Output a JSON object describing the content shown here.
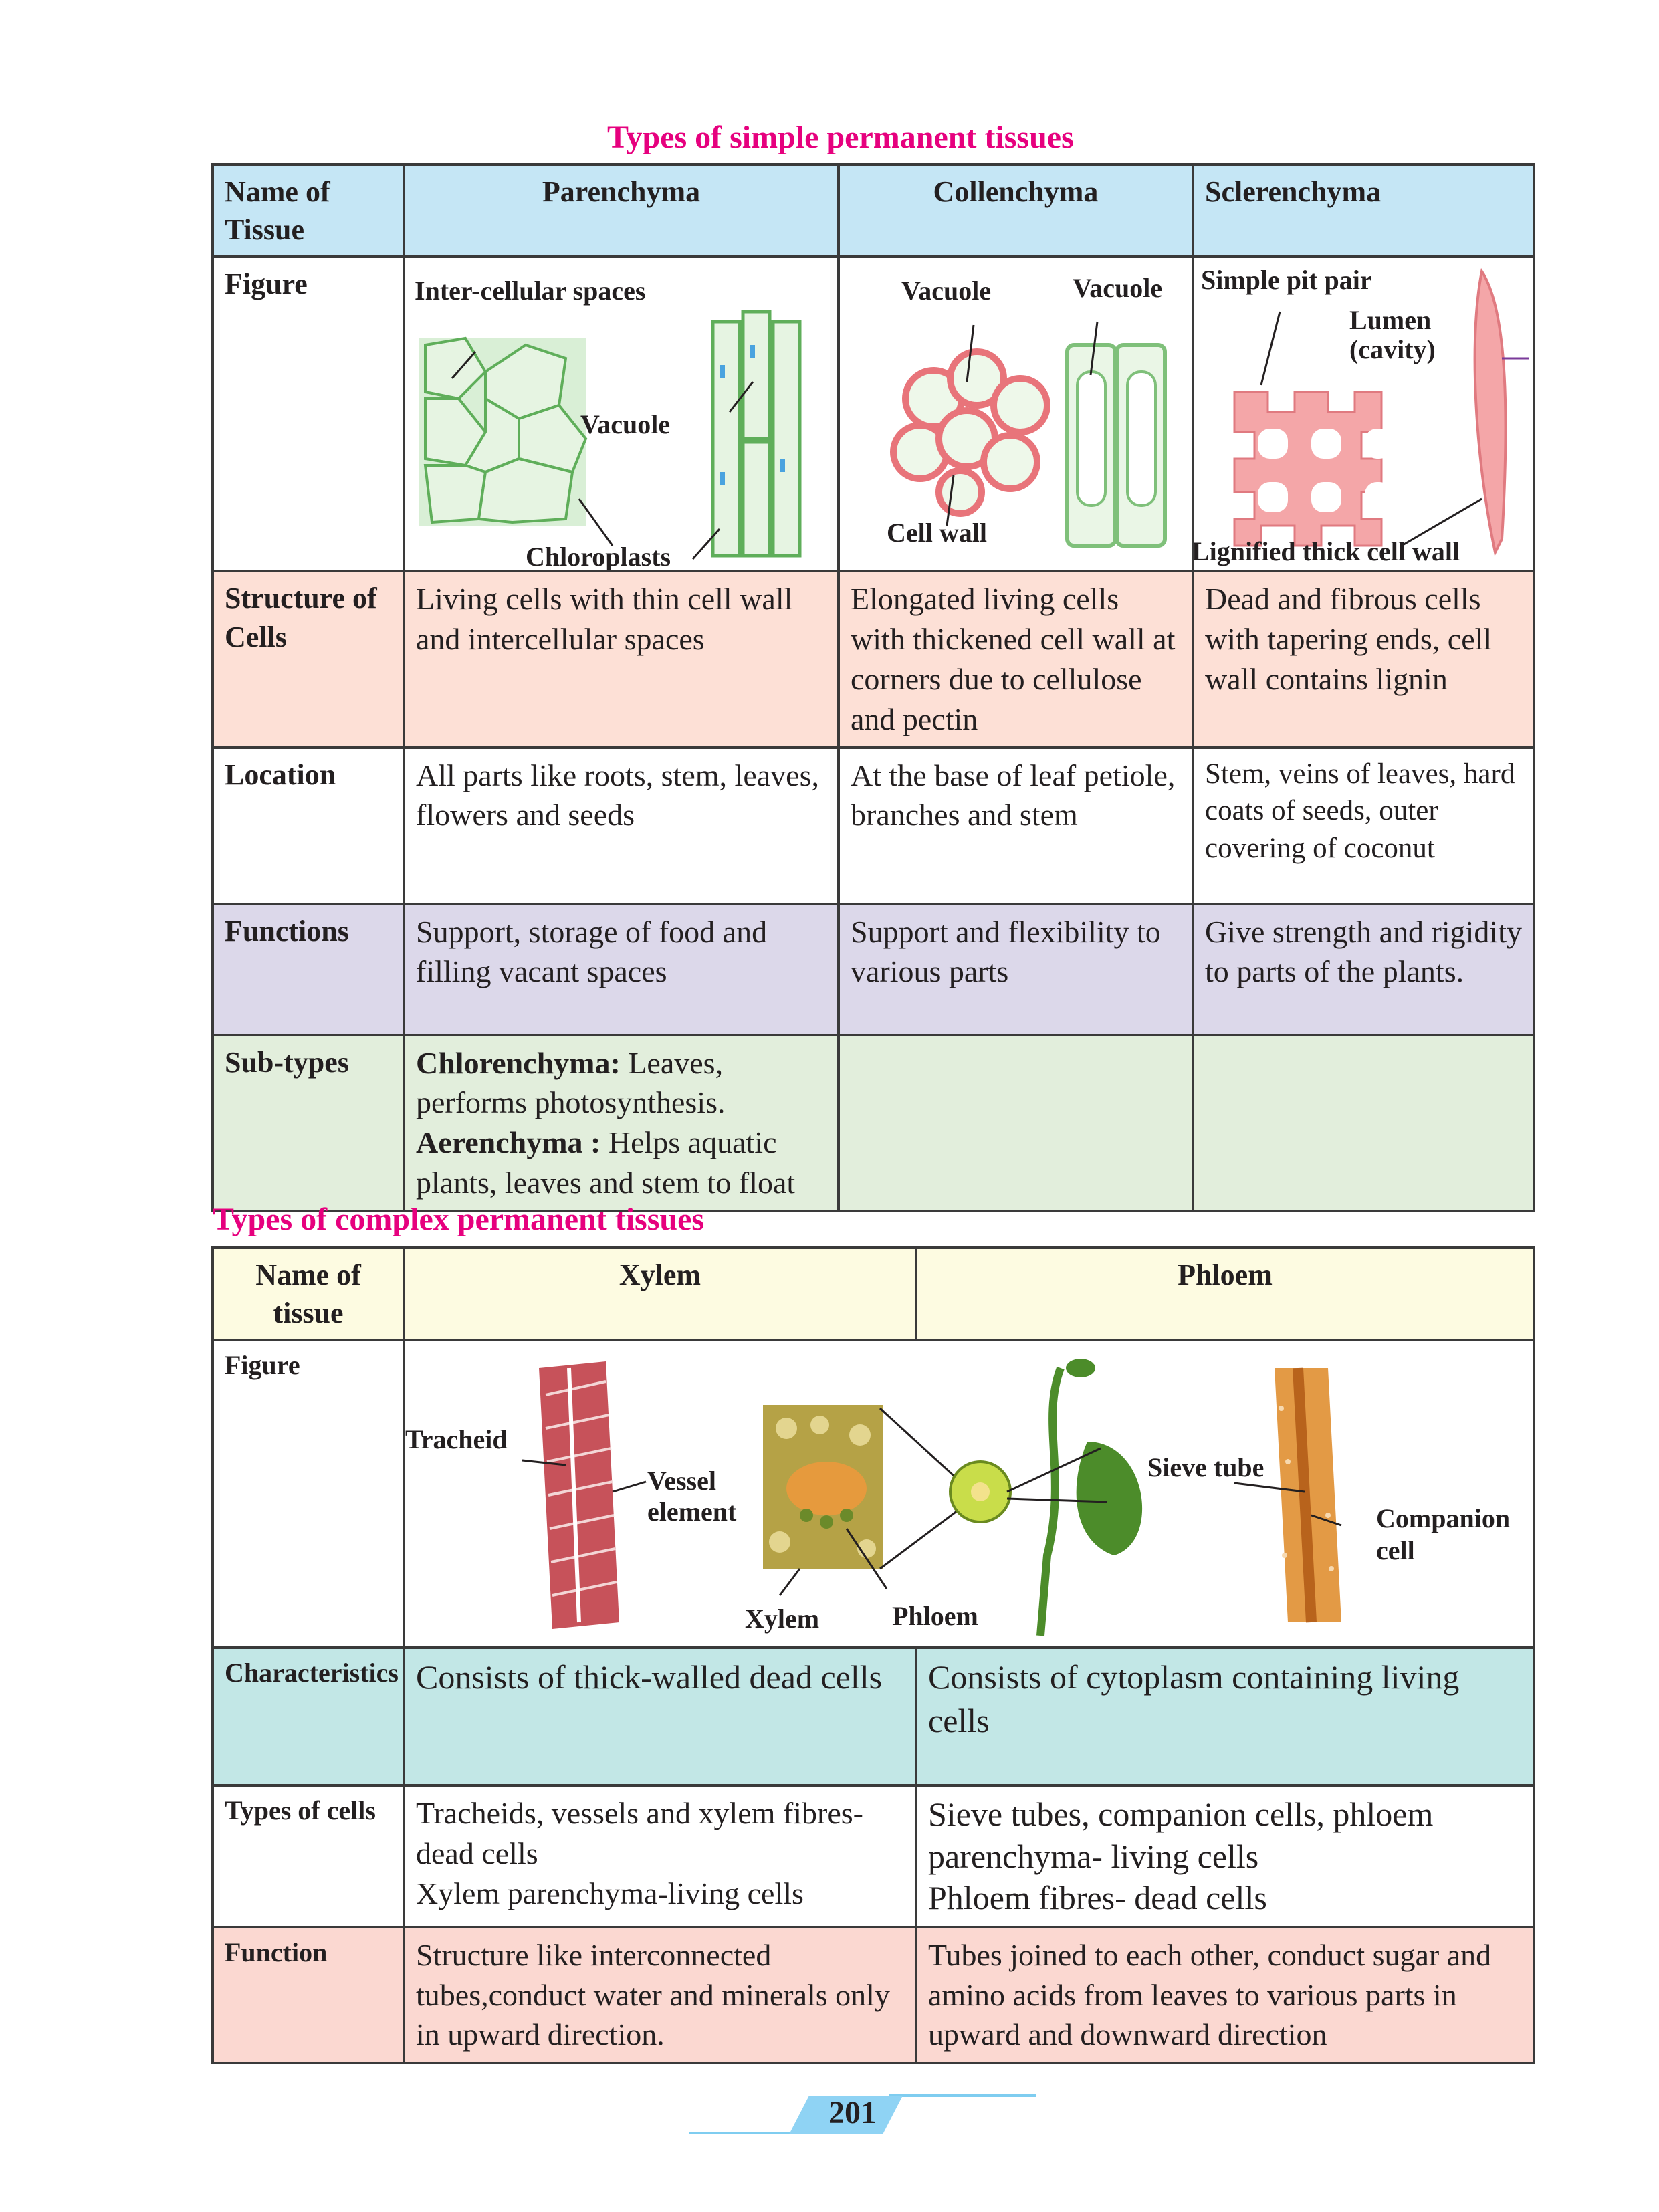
{
  "simple": {
    "title": "Types of simple permanent tissues",
    "header": {
      "name": "Name of Tissue",
      "cols": [
        "Parenchyma",
        "Collenchyma",
        "Sclerenchyma"
      ]
    },
    "figure": {
      "label": "Figure",
      "parenchyma": {
        "intercellular": "Inter-cellular spaces",
        "vacuole": "Vacuole",
        "chloroplasts": "Chloroplasts"
      },
      "collenchyma": {
        "vacuole1": "Vacuole",
        "vacuole2": "Vacuole",
        "cellwall": "Cell wall"
      },
      "sclerenchyma": {
        "pit": "Simple pit pair",
        "lumen1": "Lumen",
        "lumen2": "(cavity)",
        "lignified": "Lignified thick cell wall"
      }
    },
    "rows": {
      "structure": {
        "label": "Structure of Cells",
        "values": [
          "Living cells with thin cell wall and intercellular spaces",
          "Elongated living cells with thickened cell wall at corners due to cellulose and pectin",
          "Dead and fibrous cells with tapering ends, cell wall contains lignin"
        ]
      },
      "location": {
        "label": "Location",
        "values": [
          "All parts like roots, stem, leaves, flowers and seeds",
          "At the base of leaf petiole, branches and stem",
          "Stem, veins of leaves, hard coats of seeds, outer covering of coconut"
        ]
      },
      "functions": {
        "label": "Functions",
        "values": [
          "Support, storage of food and filling vacant spaces",
          "Support and flexibility to various parts",
          "Give strength and rigidity to parts of the plants."
        ]
      },
      "subtypes": {
        "label": "Sub-types",
        "chl_name": "Chlorenchyma:",
        "chl_text": "Leaves, performs photosynthesis.",
        "aer_name": "Aerenchyma :",
        "aer_text": "Helps aquatic plants, leaves and stem to float"
      }
    }
  },
  "complex": {
    "title": "Types of complex permanent tissues",
    "header": {
      "name": "Name of tissue",
      "cols": [
        "Xylem",
        "Phloem"
      ]
    },
    "figure": {
      "label": "Figure",
      "tracheid": "Tracheid",
      "vessel1": "Vessel",
      "vessel2": "element",
      "xylem": "Xylem",
      "phloem": "Phloem",
      "sieve": "Sieve tube",
      "companion1": "Companion",
      "companion2": "cell"
    },
    "rows": {
      "characteristics": {
        "label": "Characteristics",
        "values": [
          "Consists of thick-walled dead cells",
          "Consists of cytoplasm containing living cells"
        ]
      },
      "types": {
        "label": "Types of cells",
        "xylem": [
          "Tracheids, vessels and xylem fibres-dead cells",
          "Xylem parenchyma-living cells"
        ],
        "phloem": [
          "Sieve tubes, companion cells, phloem parenchyma- living cells",
          "Phloem fibres- dead cells"
        ]
      },
      "function": {
        "label": "Function",
        "values": [
          "Structure like interconnected tubes,conduct water and minerals only in upward direction.",
          "Tubes joined to each other, conduct sugar and amino acids from leaves to various parts in upward and downward direction"
        ]
      }
    }
  },
  "page_number": "201",
  "colors": {
    "heading": "#e6007e",
    "header_blue": "#c5e6f5",
    "structure_pink": "#fde0d6",
    "functions_lavender": "#dcd8ea",
    "subtypes_green": "#e2eedc",
    "complex_header": "#fdfbe1",
    "characteristics_teal": "#c2e7e6",
    "function_salmon": "#fbd8d1"
  }
}
